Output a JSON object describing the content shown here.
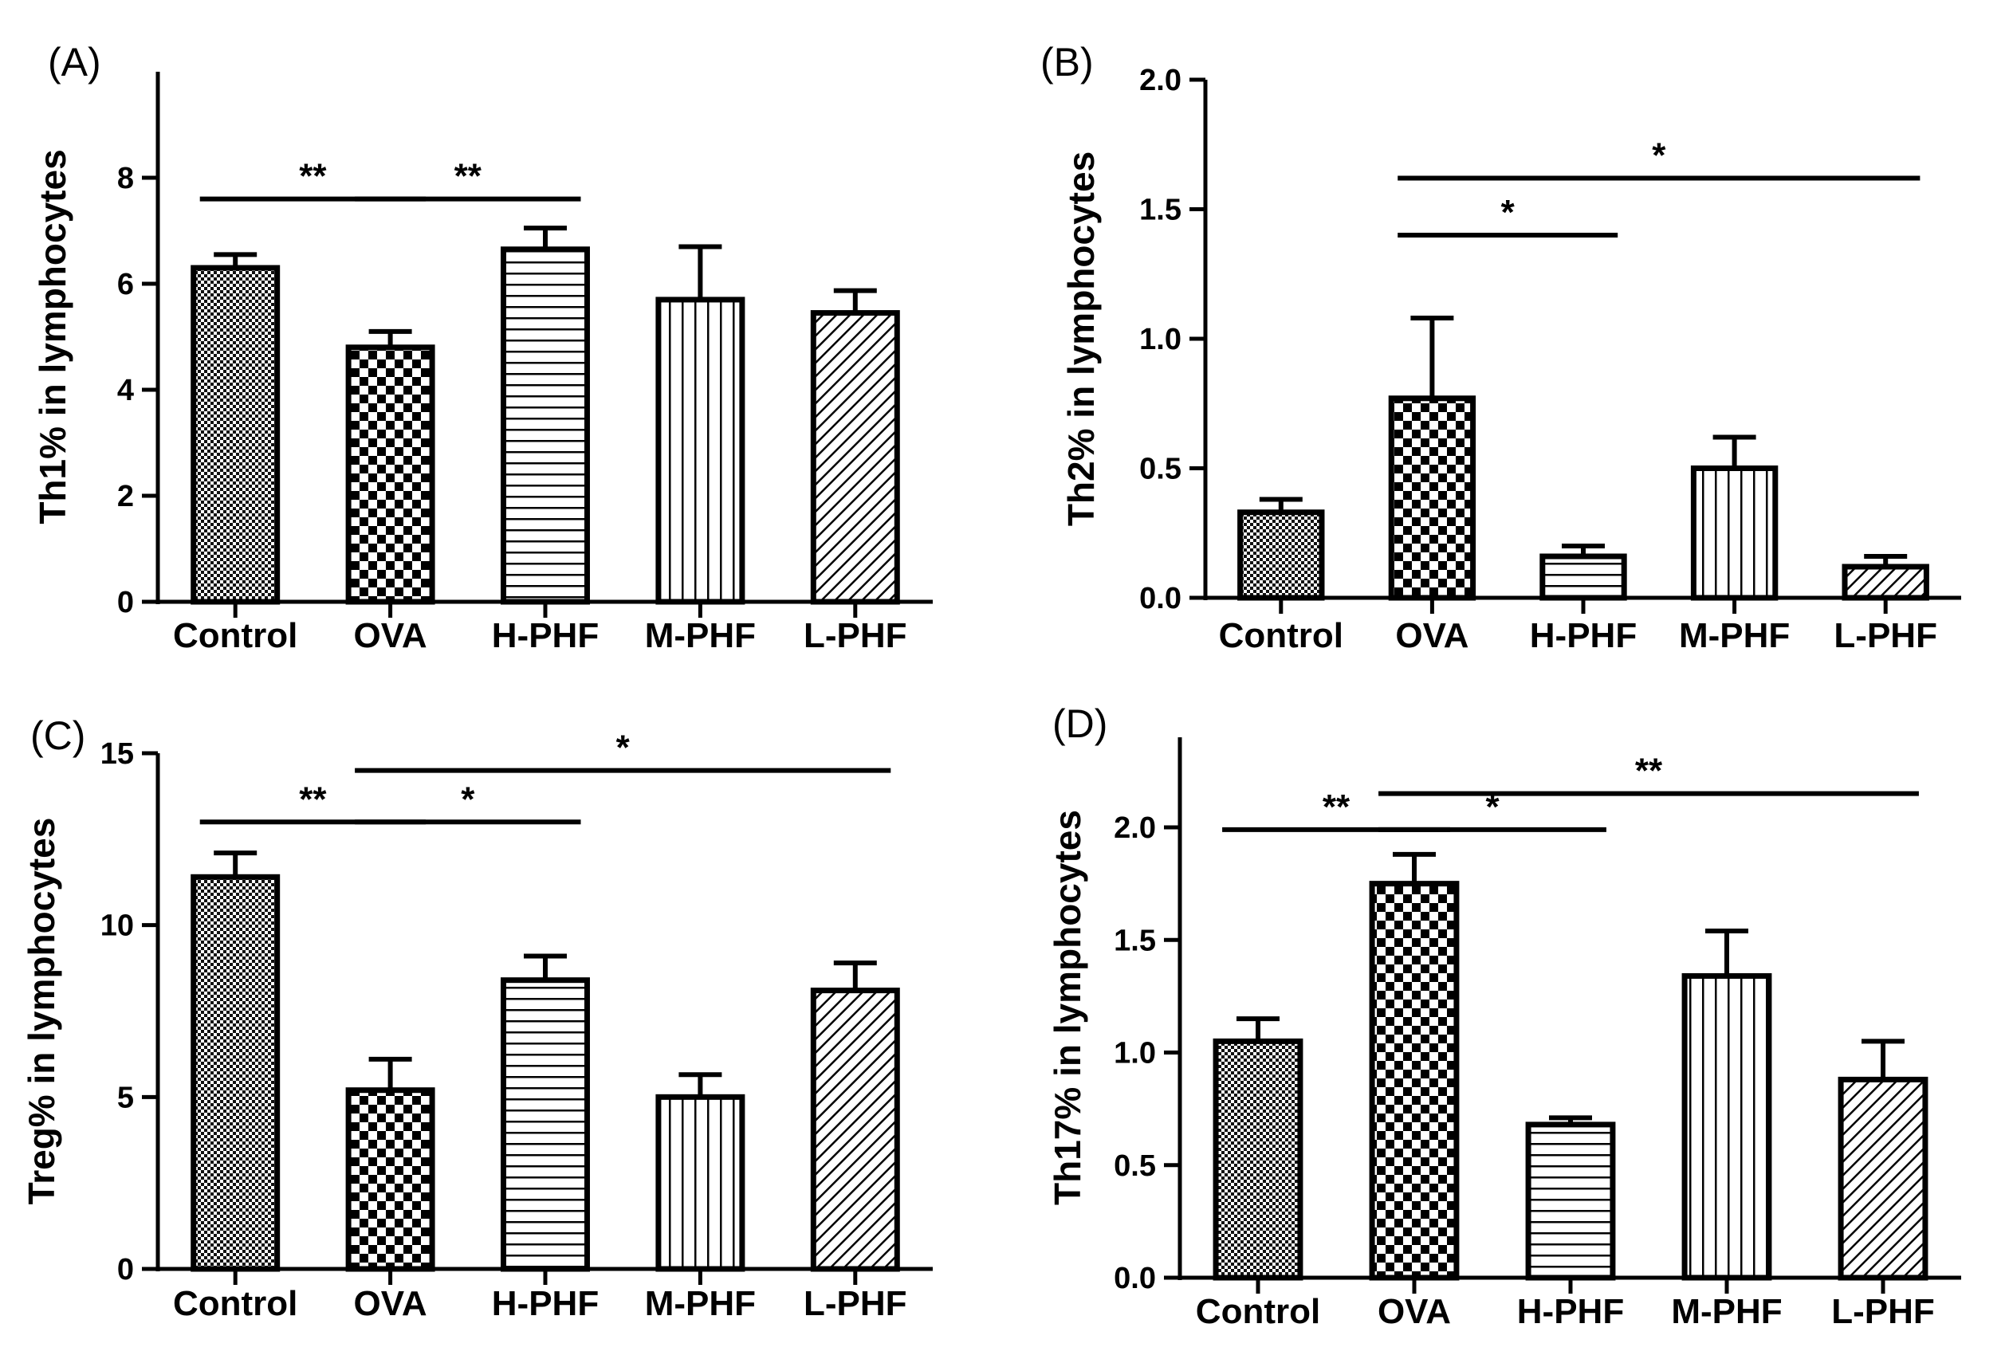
{
  "figure": {
    "panels_count": 4
  },
  "chart_data": [
    {
      "type": "bar",
      "panel": "(A)",
      "ylabel": "Th1% in lymphocytes",
      "categories": [
        "Control",
        "OVA",
        "H-PHF",
        "M-PHF",
        "L-PHF"
      ],
      "values": [
        6.3,
        4.8,
        6.65,
        5.7,
        5.45
      ],
      "errors": [
        0.25,
        0.3,
        0.4,
        1.0,
        0.42
      ],
      "patterns": [
        "dense-check",
        "check",
        "horizontal",
        "vertical",
        "diagonal"
      ],
      "ylim": [
        0,
        10
      ],
      "yticks": [
        "0",
        "2",
        "4",
        "6",
        "8"
      ],
      "ytick_values": [
        0,
        2,
        4,
        6,
        8
      ],
      "significance": [
        {
          "from": 0,
          "to": 1,
          "y": 7.6,
          "label": "**"
        },
        {
          "from": 1,
          "to": 2,
          "y": 7.6,
          "label": "**"
        }
      ]
    },
    {
      "type": "bar",
      "panel": "(B)",
      "ylabel": "Th2% in lymphocytes",
      "categories": [
        "Control",
        "OVA",
        "H-PHF",
        "M-PHF",
        "L-PHF"
      ],
      "values": [
        0.33,
        0.77,
        0.16,
        0.5,
        0.12
      ],
      "errors": [
        0.05,
        0.31,
        0.04,
        0.12,
        0.04
      ],
      "patterns": [
        "dense-check",
        "check",
        "horizontal",
        "vertical",
        "diagonal"
      ],
      "ylim": [
        0,
        2.0
      ],
      "yticks": [
        "0.0",
        "0.5",
        "1.0",
        "1.5",
        "2.0"
      ],
      "ytick_values": [
        0,
        0.5,
        1.0,
        1.5,
        2.0
      ],
      "significance": [
        {
          "from": 1,
          "to": 4,
          "y": 1.62,
          "label": "*"
        },
        {
          "from": 1,
          "to": 2,
          "y": 1.4,
          "label": "*"
        }
      ]
    },
    {
      "type": "bar",
      "panel": "(C)",
      "ylabel": "Treg% in lymphocytes",
      "categories": [
        "Control",
        "OVA",
        "H-PHF",
        "M-PHF",
        "L-PHF"
      ],
      "values": [
        11.4,
        5.2,
        8.4,
        5.0,
        8.1
      ],
      "errors": [
        0.7,
        0.9,
        0.7,
        0.65,
        0.8
      ],
      "patterns": [
        "dense-check",
        "check",
        "horizontal",
        "vertical",
        "diagonal"
      ],
      "ylim": [
        0,
        15
      ],
      "yticks": [
        "0",
        "5",
        "10",
        "15"
      ],
      "ytick_values": [
        0,
        5,
        10,
        15
      ],
      "significance": [
        {
          "from": 1,
          "to": 4,
          "y": 14.5,
          "label": "*"
        },
        {
          "from": 0,
          "to": 1,
          "y": 13.0,
          "label": "**"
        },
        {
          "from": 1,
          "to": 2,
          "y": 13.0,
          "label": "*"
        }
      ]
    },
    {
      "type": "bar",
      "panel": "(D)",
      "ylabel": "Th17% in lymphocytes",
      "categories": [
        "Control",
        "OVA",
        "H-PHF",
        "M-PHF",
        "L-PHF"
      ],
      "values": [
        1.05,
        1.75,
        0.68,
        1.34,
        0.88
      ],
      "errors": [
        0.1,
        0.13,
        0.03,
        0.2,
        0.17
      ],
      "patterns": [
        "dense-check",
        "check",
        "horizontal",
        "vertical",
        "diagonal"
      ],
      "ylim": [
        0,
        2.4
      ],
      "yticks": [
        "0.0",
        "0.5",
        "1.0",
        "1.5",
        "2.0"
      ],
      "ytick_values": [
        0,
        0.5,
        1.0,
        1.5,
        2.0
      ],
      "significance": [
        {
          "from": 1,
          "to": 4,
          "y": 2.15,
          "label": "**"
        },
        {
          "from": 0,
          "to": 1,
          "y": 1.99,
          "label": "**"
        },
        {
          "from": 1,
          "to": 2,
          "y": 1.99,
          "label": "*"
        }
      ]
    }
  ]
}
